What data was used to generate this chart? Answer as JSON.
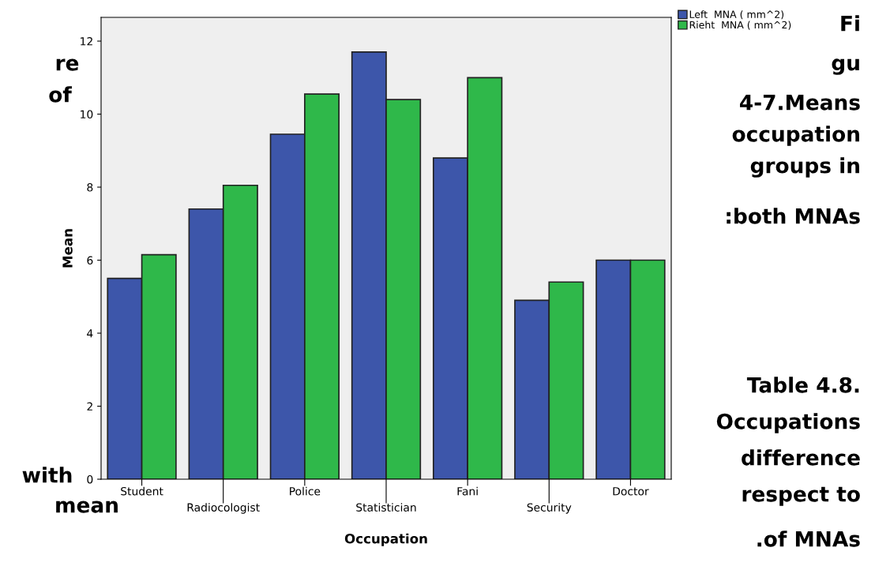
{
  "chart_data": {
    "type": "bar",
    "xlabel": "Occupation",
    "ylabel": "Mean",
    "categories": [
      "Student",
      "Radiocologist",
      "Police",
      "Statistician",
      "Fani",
      "Security",
      "Doctor"
    ],
    "series": [
      {
        "name": "Left  MNA ( mm^2)",
        "color": "#3d56aa",
        "values": [
          5.5,
          7.4,
          9.45,
          11.7,
          8.8,
          4.9,
          6.0
        ]
      },
      {
        "name": "Rieht  MNA ( mm^2)",
        "color": "#2fb84a",
        "values": [
          6.15,
          8.05,
          10.55,
          10.4,
          11.0,
          5.4,
          6.0
        ]
      }
    ],
    "ylim": [
      0,
      12.65
    ],
    "yticks": [
      0,
      2,
      4,
      6,
      8,
      10,
      12
    ],
    "grid": false,
    "legend": "top right",
    "annotations": [
      "re",
      "of",
      "with",
      "mean",
      "Fi",
      "gu",
      "4-7.Means",
      "occupation",
      "groups in",
      ":both MNAs",
      "Table 4.8.",
      "Occupations",
      "difference",
      "respect to",
      ".of MNAs"
    ]
  }
}
